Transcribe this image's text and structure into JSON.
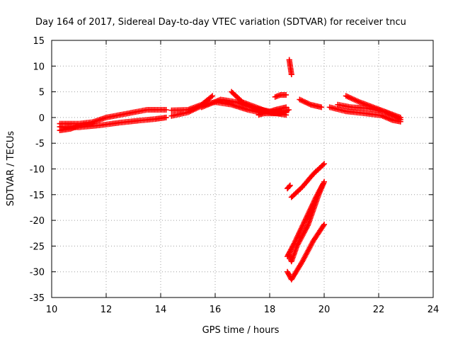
{
  "chart_data": {
    "type": "scatter",
    "title": "Day 164 of 2017, Sidereal Day-to-day VTEC variation (SDTVAR) for receiver tncu",
    "xlabel": "GPS time / hours",
    "ylabel": "SDTVAR / TECUs",
    "xlim": [
      10,
      24
    ],
    "ylim": [
      -35,
      15
    ],
    "x_ticks": [
      "10",
      "12",
      "14",
      "16",
      "18",
      "20",
      "22",
      "24"
    ],
    "y_ticks": [
      "15",
      "10",
      "5",
      "0",
      "-5",
      "-10",
      "-15",
      "-20",
      "-25",
      "-30",
      "-35"
    ],
    "grid": true,
    "marker_color": "#ff0000",
    "series": [
      {
        "name": "arc-early-lower",
        "points": [
          [
            10.3,
            -1.8
          ],
          [
            11.0,
            -1.9
          ],
          [
            11.8,
            -1.5
          ],
          [
            12.5,
            -1.0
          ],
          [
            13.2,
            -0.6
          ],
          [
            13.8,
            -0.3
          ],
          [
            14.2,
            0.0
          ]
        ]
      },
      {
        "name": "arc-early-upper",
        "points": [
          [
            10.3,
            -1.2
          ],
          [
            11.0,
            -1.2
          ],
          [
            11.5,
            -0.9
          ],
          [
            12.0,
            0.0
          ],
          [
            12.8,
            0.8
          ],
          [
            13.5,
            1.5
          ],
          [
            14.2,
            1.5
          ]
        ]
      },
      {
        "name": "arc-early-hump",
        "points": [
          [
            10.3,
            -2.5
          ],
          [
            10.7,
            -2.2
          ],
          [
            11.0,
            -1.6
          ],
          [
            11.5,
            -1.1
          ]
        ]
      },
      {
        "name": "arc-mid-a",
        "points": [
          [
            14.4,
            0.3
          ],
          [
            15.0,
            1.0
          ],
          [
            15.6,
            2.5
          ],
          [
            16.0,
            3.0
          ],
          [
            16.6,
            2.5
          ],
          [
            17.2,
            1.5
          ],
          [
            17.8,
            0.8
          ],
          [
            18.4,
            0.8
          ],
          [
            18.7,
            1.5
          ]
        ]
      },
      {
        "name": "arc-mid-b",
        "points": [
          [
            14.4,
            1.4
          ],
          [
            15.0,
            1.5
          ],
          [
            15.5,
            2.5
          ],
          [
            15.9,
            4.2
          ]
        ]
      },
      {
        "name": "arc-mid-c",
        "points": [
          [
            15.5,
            2.0
          ],
          [
            16.2,
            3.5
          ],
          [
            16.8,
            3.0
          ],
          [
            17.4,
            1.8
          ],
          [
            18.0,
            1.2
          ],
          [
            18.6,
            1.0
          ]
        ]
      },
      {
        "name": "arc-mid-d",
        "points": [
          [
            16.6,
            5.0
          ],
          [
            17.0,
            3.0
          ],
          [
            17.5,
            2.0
          ],
          [
            18.0,
            1.0
          ],
          [
            18.6,
            0.5
          ]
        ]
      },
      {
        "name": "arc-mid-e",
        "points": [
          [
            18.2,
            4.0
          ],
          [
            18.4,
            4.4
          ],
          [
            18.6,
            4.4
          ]
        ]
      },
      {
        "name": "arc-mid-f",
        "points": [
          [
            17.6,
            0.5
          ],
          [
            18.2,
            1.5
          ],
          [
            18.6,
            2.0
          ]
        ]
      },
      {
        "name": "outliers",
        "points": [
          [
            18.72,
            11.2
          ],
          [
            18.8,
            8.4
          ]
        ]
      },
      {
        "name": "arc-dip",
        "points": [
          [
            19.1,
            3.5
          ],
          [
            19.5,
            2.5
          ],
          [
            19.9,
            2.0
          ]
        ]
      },
      {
        "name": "arc-late-a",
        "points": [
          [
            20.2,
            2.0
          ],
          [
            20.8,
            1.2
          ],
          [
            21.5,
            0.8
          ],
          [
            22.1,
            0.4
          ],
          [
            22.5,
            -0.5
          ],
          [
            22.8,
            -0.8
          ]
        ]
      },
      {
        "name": "arc-late-b",
        "points": [
          [
            20.8,
            4.2
          ],
          [
            21.3,
            3.0
          ],
          [
            21.8,
            2.0
          ],
          [
            22.3,
            1.0
          ],
          [
            22.8,
            0.0
          ]
        ]
      },
      {
        "name": "arc-late-c",
        "points": [
          [
            20.5,
            2.5
          ],
          [
            21.0,
            2.0
          ],
          [
            21.6,
            1.8
          ],
          [
            22.2,
            1.2
          ],
          [
            22.8,
            -0.4
          ]
        ]
      },
      {
        "name": "steep-upper",
        "points": [
          [
            18.8,
            -15.5
          ],
          [
            19.2,
            -13.5
          ],
          [
            19.6,
            -11.0
          ],
          [
            20.0,
            -9.0
          ]
        ]
      },
      {
        "name": "steep-upper-start",
        "points": [
          [
            18.65,
            -13.8
          ],
          [
            18.75,
            -13.2
          ]
        ]
      },
      {
        "name": "steep-middle",
        "points": [
          [
            18.7,
            -26.5
          ],
          [
            18.8,
            -28.0
          ],
          [
            19.0,
            -25.0
          ],
          [
            19.4,
            -21.0
          ],
          [
            19.8,
            -15.0
          ],
          [
            20.0,
            -12.5
          ]
        ]
      },
      {
        "name": "steep-middle-2",
        "points": [
          [
            18.65,
            -27.0
          ],
          [
            18.9,
            -24.5
          ],
          [
            19.3,
            -20.0
          ],
          [
            19.7,
            -15.5
          ],
          [
            19.95,
            -13.0
          ]
        ]
      },
      {
        "name": "steep-lower",
        "points": [
          [
            18.65,
            -30.0
          ],
          [
            18.8,
            -31.5
          ],
          [
            19.2,
            -28.0
          ],
          [
            19.6,
            -24.0
          ],
          [
            20.0,
            -20.8
          ]
        ]
      }
    ]
  }
}
